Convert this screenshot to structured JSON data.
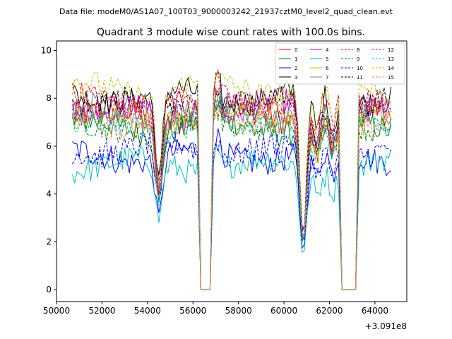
{
  "header": {
    "data_file": "Data file: modeM0/AS1A07_100T03_9000003242_21937cztM0_level2_quad_clean.evt",
    "title": "Quadrant 3 module wise count rates with 100.0s bins."
  },
  "chart_data": {
    "type": "line",
    "title": "Quadrant 3 module wise count rates with 100.0s bins.",
    "xlabel": "",
    "ylabel": "",
    "x_offset_label": "+3.091e8",
    "xlim": [
      50000,
      65400
    ],
    "ylim": [
      -0.5,
      10.4
    ],
    "x_ticks": [
      50000,
      52000,
      54000,
      56000,
      58000,
      60000,
      62000,
      64000
    ],
    "x_tick_labels": [
      "50000",
      "52000",
      "54000",
      "56000",
      "58000",
      "60000",
      "62000",
      "64000"
    ],
    "y_ticks": [
      0,
      2,
      4,
      6,
      8,
      10
    ],
    "y_tick_labels": [
      "0",
      "2",
      "4",
      "6",
      "8",
      "10"
    ],
    "legend_position": "top-right",
    "segments": [
      {
        "start": 50700,
        "end": 56200
      },
      {
        "start": 56900,
        "end": 60900
      },
      {
        "start": 61000,
        "end": 62400
      },
      {
        "start": 63300,
        "end": 64700
      }
    ],
    "gaps": [
      {
        "start": 56350,
        "end": 56750,
        "value": 0
      },
      {
        "start": 62550,
        "end": 63150,
        "value": 0
      }
    ],
    "dips": [
      {
        "x": 54500,
        "depth": 0.45
      },
      {
        "x": 60850,
        "depth": 0.72
      },
      {
        "x": 61450,
        "depth": 0.2
      },
      {
        "x": 62150,
        "depth": 0.18
      }
    ],
    "series": [
      {
        "name": "0",
        "color": "#ff0000",
        "dash": "solid",
        "level": 7.2
      },
      {
        "name": "1",
        "color": "#008000",
        "dash": "solid",
        "level": 6.8
      },
      {
        "name": "2",
        "color": "#0000ff",
        "dash": "solid",
        "level": 5.6
      },
      {
        "name": "3",
        "color": "#000000",
        "dash": "solid",
        "level": 8.1
      },
      {
        "name": "4",
        "color": "#bf00bf",
        "dash": "solid",
        "level": 7.6
      },
      {
        "name": "5",
        "color": "#00bfbf",
        "dash": "solid",
        "level": 5.2
      },
      {
        "name": "6",
        "color": "#bfbf00",
        "dash": "solid",
        "level": 7.3
      },
      {
        "name": "7",
        "color": "#808080",
        "dash": "solid",
        "level": 7.4
      },
      {
        "name": "8",
        "color": "#ff0000",
        "dash": "dashed",
        "level": 7.9
      },
      {
        "name": "9",
        "color": "#008000",
        "dash": "dashed",
        "level": 7.0
      },
      {
        "name": "10",
        "color": "#0000ff",
        "dash": "dashed",
        "level": 5.9
      },
      {
        "name": "11",
        "color": "#000000",
        "dash": "dashed",
        "level": 7.8
      },
      {
        "name": "12",
        "color": "#bf00bf",
        "dash": "dashed",
        "level": 7.5
      },
      {
        "name": "13",
        "color": "#00bfbf",
        "dash": "dashed",
        "level": 6.9
      },
      {
        "name": "14",
        "color": "#bfbf00",
        "dash": "dashed",
        "level": 8.4
      },
      {
        "name": "15",
        "color": "#ff7f50",
        "dash": "dashed",
        "level": 7.1
      }
    ]
  }
}
